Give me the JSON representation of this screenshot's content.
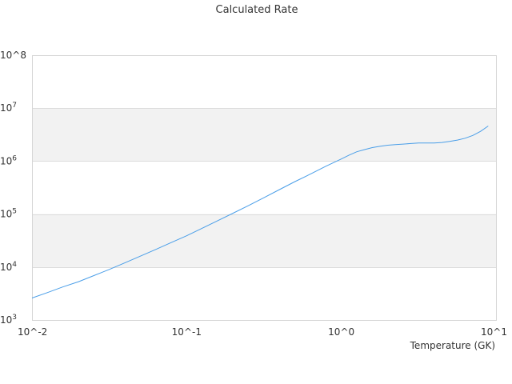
{
  "chart_data": {
    "type": "line",
    "title": "Calculated Rate",
    "xlabel": "Temperature (GK)",
    "ylabel": "",
    "x_scale": "log",
    "y_scale": "log",
    "xlim": [
      0.01,
      10
    ],
    "ylim": [
      1000,
      100000000
    ],
    "x_ticks": [
      {
        "value": 0.01,
        "label": "10^-2"
      },
      {
        "value": 0.1,
        "label": "10^-1"
      },
      {
        "value": 1,
        "label": "10^0"
      },
      {
        "value": 10,
        "label": "10^1"
      }
    ],
    "y_ticks": [
      {
        "value": 1000,
        "base": "10",
        "exp": "3"
      },
      {
        "value": 10000,
        "base": "10",
        "exp": "4"
      },
      {
        "value": 100000,
        "base": "10",
        "exp": "5"
      },
      {
        "value": 1000000,
        "base": "10",
        "exp": "6"
      },
      {
        "value": 10000000,
        "base": "10",
        "exp": "7"
      },
      {
        "value": 100000000,
        "base": "10^8",
        "exp": ""
      }
    ],
    "bands": true,
    "grid": true,
    "legend": "none",
    "series": [
      {
        "color": "#4a9ee8",
        "x": [
          0.01,
          0.0126,
          0.0158,
          0.02,
          0.0251,
          0.0316,
          0.0398,
          0.05,
          0.0631,
          0.0794,
          0.1,
          0.1259,
          0.1585,
          0.1995,
          0.2512,
          0.3162,
          0.3981,
          0.5012,
          0.631,
          0.7943,
          1.0,
          1.122,
          1.259,
          1.413,
          1.585,
          1.778,
          1.995,
          2.239,
          2.512,
          2.818,
          3.162,
          3.548,
          3.981,
          4.467,
          5.012,
          5.623,
          6.31,
          7.079,
          7.943,
          8.913
        ],
        "y": [
          2600,
          3300,
          4200,
          5300,
          6900,
          9000,
          12000,
          16000,
          21500,
          29000,
          39000,
          54000,
          75000,
          104000,
          145000,
          204000,
          290000,
          410000,
          570000,
          800000,
          1100000,
          1300000,
          1500000,
          1650000,
          1800000,
          1900000,
          2000000,
          2050000,
          2100000,
          2150000,
          2200000,
          2200000,
          2200000,
          2250000,
          2350000,
          2500000,
          2700000,
          3050000,
          3650000,
          4600000
        ]
      }
    ]
  }
}
